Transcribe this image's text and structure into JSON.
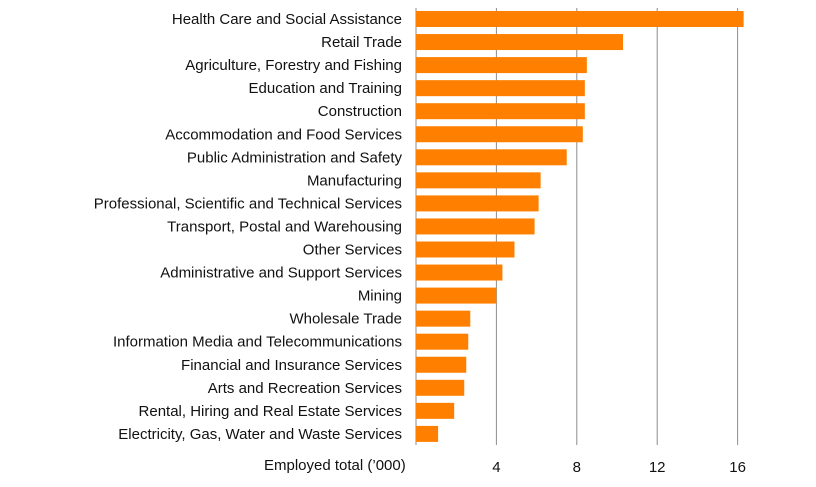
{
  "chart_data": {
    "type": "bar",
    "orientation": "horizontal",
    "categories": [
      "Health Care and Social Assistance",
      "Retail Trade",
      "Agriculture, Forestry and Fishing",
      "Education and Training",
      "Construction",
      "Accommodation and Food Services",
      "Public Administration and Safety",
      "Manufacturing",
      "Professional, Scientific and Technical Services",
      "Transport, Postal and Warehousing",
      "Other Services",
      "Administrative and Support Services",
      "Mining",
      "Wholesale Trade",
      "Information Media and Telecommunications",
      "Financial and Insurance Services",
      "Arts and Recreation Services",
      "Rental, Hiring and Real Estate Services",
      "Electricity, Gas, Water and Waste Services"
    ],
    "values": [
      16.3,
      10.3,
      8.5,
      8.4,
      8.4,
      8.3,
      7.5,
      6.2,
      6.1,
      5.9,
      4.9,
      4.3,
      4.0,
      2.7,
      2.6,
      2.5,
      2.4,
      1.9,
      1.1
    ],
    "xlabel": "Employed total (’000)",
    "ylabel": "",
    "xlim": [
      0,
      17
    ],
    "xticks": [
      4,
      8,
      12,
      16
    ],
    "grid": "vertical",
    "bar_color": "#FF8000",
    "gridline_color": "#8C8C8C",
    "legend": "none"
  }
}
